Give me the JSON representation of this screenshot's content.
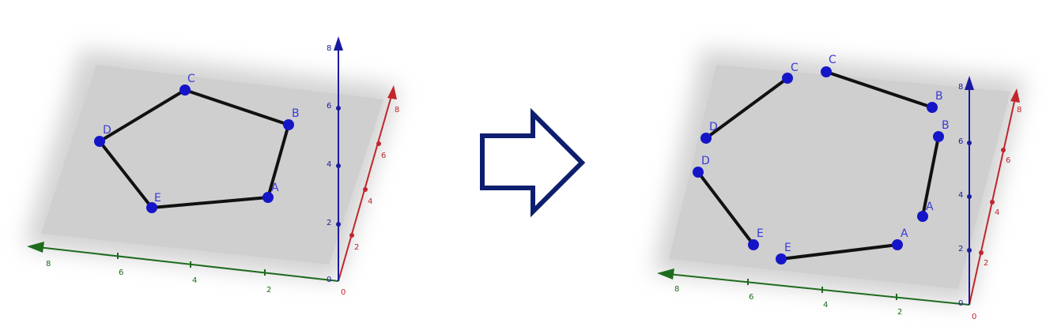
{
  "colors": {
    "plane": "#d3d3d3",
    "point": "#1515c8",
    "edge": "#111111",
    "z_axis": "#1a1aa0",
    "x_axis": "#c0262c",
    "y_axis": "#1e6b1e",
    "arrow": "#0e1e6e"
  },
  "arrow_icon": "right-arrow-outline-icon",
  "left_scene": {
    "z_ticks": [
      "0",
      "2",
      "4",
      "6",
      "8"
    ],
    "x_ticks": [
      "0",
      "2",
      "4",
      "6",
      "8"
    ],
    "y_ticks": [
      "2",
      "4",
      "6",
      "8"
    ],
    "vertices": [
      "A",
      "B",
      "C",
      "D",
      "E"
    ]
  },
  "right_scene": {
    "z_ticks": [
      "0",
      "2",
      "4",
      "6",
      "8"
    ],
    "x_ticks": [
      "0",
      "2",
      "4",
      "6",
      "8"
    ],
    "y_ticks": [
      "2",
      "4",
      "6",
      "8"
    ],
    "segment_labels": [
      [
        "C",
        "B"
      ],
      [
        "B",
        "A"
      ],
      [
        "A",
        "E"
      ],
      [
        "E",
        "D"
      ],
      [
        "D",
        "C"
      ]
    ]
  }
}
